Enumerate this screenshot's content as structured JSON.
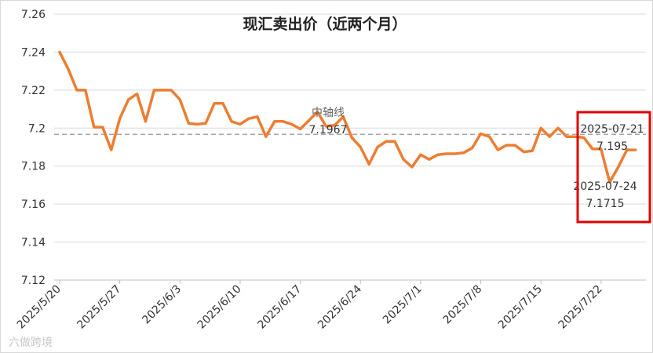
{
  "chart_data": {
    "type": "line",
    "title": "现汇卖出价（近两个月）",
    "ylim": [
      7.12,
      7.26
    ],
    "yticks": [
      "7.26",
      "7.24",
      "7.22",
      "7.2",
      "7.18",
      "7.16",
      "7.14",
      "7.12"
    ],
    "xticks": [
      "2025/5/20",
      "2025/5/27",
      "2025/6/3",
      "2025/6/10",
      "2025/6/17",
      "2025/6/24",
      "2025/7/1",
      "2025/7/8",
      "2025/7/15",
      "2025/7/22"
    ],
    "grid": "horizontal",
    "line_color": "#ED7D31",
    "reference_line": {
      "label": "中轴线",
      "value_text": "7.1967",
      "value": 7.1967,
      "color": "#A6A6A6"
    },
    "series": [
      {
        "values": [
          7.24,
          7.231,
          7.22,
          7.22,
          7.2005,
          7.2005,
          7.1885,
          7.205,
          7.215,
          7.218,
          7.2035,
          7.22,
          7.22,
          7.22,
          7.215,
          7.2025,
          7.202,
          7.2025,
          7.213,
          7.213,
          7.2035,
          7.202,
          7.205,
          7.206,
          7.1955,
          7.2035,
          7.2035,
          7.202,
          7.1995,
          7.204,
          7.2085,
          7.201,
          7.2015,
          7.206,
          7.195,
          7.19,
          7.181,
          7.19,
          7.193,
          7.193,
          7.1835,
          7.1795,
          7.186,
          7.1835,
          7.186,
          7.1865,
          7.1865,
          7.187,
          7.1895,
          7.197,
          7.1955,
          7.1885,
          7.191,
          7.191,
          7.1875,
          7.188,
          7.2,
          7.1955,
          7.2,
          7.1955,
          7.1955,
          7.195,
          7.189,
          7.189,
          7.1715,
          7.1795,
          7.1885,
          7.1885
        ]
      }
    ],
    "annotations": [
      {
        "date": "2025-07-21",
        "value": "7.195"
      },
      {
        "date": "2025-07-24",
        "value": "7.1715"
      }
    ],
    "highlight_box_color": "#E00000"
  },
  "watermark": "六做跨境"
}
